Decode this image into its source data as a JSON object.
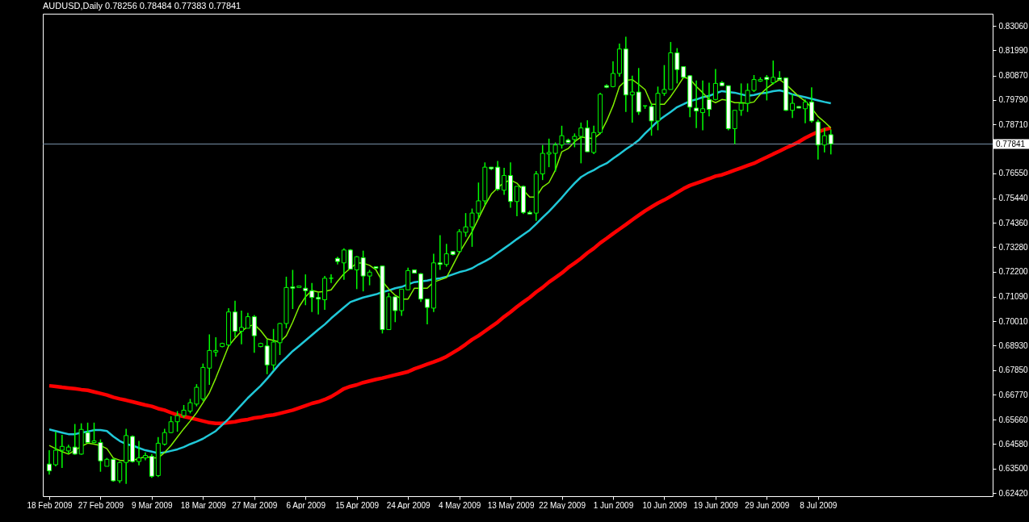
{
  "chart_data": {
    "type": "candlestick",
    "title": "AUDUSD,Daily  0.78256 0.78484 0.77383 0.77841",
    "categories": [
      "18 Feb 2009",
      null,
      null,
      null,
      null,
      null,
      null,
      null,
      "27 Feb 2009",
      null,
      null,
      null,
      null,
      null,
      null,
      null,
      "9 Mar 2009",
      null,
      null,
      null,
      null,
      null,
      null,
      null,
      "18 Mar 2009",
      null,
      null,
      null,
      null,
      null,
      null,
      null,
      "27 Mar 2009",
      null,
      null,
      null,
      null,
      null,
      null,
      null,
      "6 Apr 2009",
      null,
      null,
      null,
      null,
      null,
      null,
      null,
      "15 Apr 2009",
      null,
      null,
      null,
      null,
      null,
      null,
      null,
      "24 Apr 2009",
      null,
      null,
      null,
      null,
      null,
      null,
      null,
      "4 May 2009",
      null,
      null,
      null,
      null,
      null,
      null,
      null,
      "13 May 2009",
      null,
      null,
      null,
      null,
      null,
      null,
      null,
      "22 May 2009",
      null,
      null,
      null,
      null,
      null,
      null,
      null,
      "1 Jun 2009",
      null,
      null,
      null,
      null,
      null,
      null,
      null,
      "10 Jun 2009",
      null,
      null,
      null,
      null,
      null,
      null,
      null,
      "19 Jun 2009",
      null,
      null,
      null,
      null,
      null,
      null,
      null,
      "29 Jun 2009",
      null,
      null,
      null,
      null,
      null,
      null,
      null,
      "8 Jul 2009",
      null,
      null
    ],
    "color": "#00ff00",
    "colors": [
      "#ffffff",
      "#000000",
      "#000000",
      "#000000",
      "#ffffff",
      "#000000",
      "#ffffff",
      "#000000",
      "#ffffff",
      "#000000",
      "#ffffff",
      "#000000",
      "#000000",
      "#ffffff",
      "#000000",
      "#000000",
      "#ffffff",
      "#000000",
      "#000000",
      "#000000",
      "#000000",
      "#000000",
      "#000000",
      "#000000",
      "#000000",
      "#000000",
      "#000000",
      "#000000",
      "#000000",
      "#ffffff",
      "#000000",
      "#000000",
      "#ffffff",
      "#000000",
      "#ffffff",
      "#000000",
      "#000000",
      "#000000",
      "#ffffff",
      "#000000",
      "#ffffff",
      "#ffffff",
      "#ffffff",
      "#000000",
      "#00ff00",
      "#ffffff",
      "#000000",
      "#ffffff",
      "#000000",
      "#ffffff",
      "#000000",
      "#ffffff",
      "#ffffff",
      "#000000",
      "#ffffff",
      "#000000",
      "#000000",
      "#ffffff",
      "#ffffff",
      "#ffffff",
      "#000000",
      "#ffffff",
      "#000000",
      "#ffffff",
      "#000000",
      "#000000",
      "#000000",
      "#000000",
      "#000000",
      "#ffffff",
      "#ffffff",
      "#000000",
      "#ffffff",
      "#000000",
      "#ffffff",
      "#ffffff",
      "#000000",
      "#000000",
      "#000000",
      "#000000",
      "#000000",
      "#ffffff",
      "#000000",
      "#000000",
      "#ffffff",
      "#000000",
      "#000000",
      "#ffffff",
      "#000000",
      "#000000",
      "#ffffff",
      "#000000",
      "#ffffff",
      "#00ff00",
      "#ffffff",
      "#000000",
      "#000000",
      "#000000",
      "#ffffff",
      "#ffffff",
      "#ffffff",
      "#ffffff",
      "#000000",
      "#ffffff",
      "#000000",
      "#ffffff",
      "#ffffff",
      "#000000",
      "#000000",
      "#000000",
      "#000000",
      "#000000",
      "#ffffff",
      "#000000",
      "#ffffff",
      "#ffffff",
      "#000000",
      "#ffffff",
      "#000000",
      "#ffffff",
      "#ffffff",
      "#000000",
      "#ffffff"
    ],
    "ohlc": [
      [
        0.637,
        0.6431,
        0.6323,
        0.634
      ],
      [
        0.6367,
        0.6513,
        0.636,
        0.6431
      ],
      [
        0.6431,
        0.6499,
        0.6353,
        0.6448
      ],
      [
        0.6428,
        0.6455,
        0.6414,
        0.6445
      ],
      [
        0.6445,
        0.6547,
        0.6411,
        0.6414
      ],
      [
        0.6414,
        0.655,
        0.6411,
        0.6523
      ],
      [
        0.6509,
        0.6553,
        0.6465,
        0.6465
      ],
      [
        0.6465,
        0.6553,
        0.6462,
        0.6472
      ],
      [
        0.6465,
        0.6479,
        0.6336,
        0.6384
      ],
      [
        0.636,
        0.6397,
        0.636,
        0.6391
      ],
      [
        0.6391,
        0.6394,
        0.6292,
        0.6296
      ],
      [
        0.6296,
        0.6381,
        0.6286,
        0.6377
      ],
      [
        0.6377,
        0.6526,
        0.6282,
        0.6496
      ],
      [
        0.6492,
        0.6496,
        0.6377,
        0.6381
      ],
      [
        0.6381,
        0.6472,
        0.6364,
        0.6397
      ],
      [
        0.6397,
        0.6421,
        0.6387,
        0.6408
      ],
      [
        0.6404,
        0.6414,
        0.6309,
        0.6316
      ],
      [
        0.6319,
        0.6489,
        0.6313,
        0.6462
      ],
      [
        0.6458,
        0.6526,
        0.6452,
        0.6509
      ],
      [
        0.6509,
        0.6581,
        0.6506,
        0.6557
      ],
      [
        0.6557,
        0.6604,
        0.6513,
        0.6584
      ],
      [
        0.6584,
        0.6631,
        0.6574,
        0.6608
      ],
      [
        0.6604,
        0.6658,
        0.6594,
        0.6641
      ],
      [
        0.6635,
        0.6723,
        0.6625,
        0.6709
      ],
      [
        0.6658,
        0.6814,
        0.6648,
        0.6797
      ],
      [
        0.6794,
        0.6943,
        0.672,
        0.6872
      ],
      [
        0.6865,
        0.693,
        0.6845,
        0.6872
      ],
      [
        0.6889,
        0.6906,
        0.6886,
        0.6903
      ],
      [
        0.6896,
        0.7059,
        0.6892,
        0.7042
      ],
      [
        0.7042,
        0.7092,
        0.693,
        0.6957
      ],
      [
        0.6957,
        0.7048,
        0.6899,
        0.6974
      ],
      [
        0.697,
        0.7038,
        0.697,
        0.7021
      ],
      [
        0.7021,
        0.7028,
        0.6862,
        0.6937
      ],
      [
        0.6889,
        0.6906,
        0.6886,
        0.6903
      ],
      [
        0.6892,
        0.692,
        0.6767,
        0.6808
      ],
      [
        0.6808,
        0.6967,
        0.6784,
        0.6909
      ],
      [
        0.6906,
        0.6994,
        0.6852,
        0.6991
      ],
      [
        0.6991,
        0.7198,
        0.697,
        0.715
      ],
      [
        0.7153,
        0.7228,
        0.7055,
        0.7147
      ],
      [
        0.715,
        0.7157,
        0.715,
        0.7157
      ],
      [
        0.7147,
        0.7208,
        0.7072,
        0.7136
      ],
      [
        0.7136,
        0.717,
        0.7042,
        0.7106
      ],
      [
        0.7106,
        0.7126,
        0.7031,
        0.7099
      ],
      [
        0.7096,
        0.7201,
        0.7052,
        0.7191
      ],
      [
        0.7191,
        0.7208,
        0.717,
        0.7191
      ],
      [
        0.7279,
        0.7286,
        0.7252,
        0.7265
      ],
      [
        0.7259,
        0.7323,
        0.7184,
        0.7316
      ],
      [
        0.7316,
        0.732,
        0.7231,
        0.7231
      ],
      [
        0.7228,
        0.7289,
        0.7143,
        0.7286
      ],
      [
        0.7282,
        0.7313,
        0.7133,
        0.7201
      ],
      [
        0.7201,
        0.7228,
        0.716,
        0.7218
      ],
      [
        0.7242,
        0.7242,
        0.7231,
        0.7235
      ],
      [
        0.7245,
        0.7245,
        0.6947,
        0.6964
      ],
      [
        0.6964,
        0.7126,
        0.6964,
        0.7109
      ],
      [
        0.7109,
        0.7109,
        0.6997,
        0.7048
      ],
      [
        0.7048,
        0.7143,
        0.7025,
        0.7143
      ],
      [
        0.714,
        0.7238,
        0.714,
        0.7225
      ],
      [
        0.7228,
        0.7228,
        0.7214,
        0.7214
      ],
      [
        0.7211,
        0.7214,
        0.7086,
        0.7099
      ],
      [
        0.7099,
        0.7099,
        0.6987,
        0.7062
      ],
      [
        0.7059,
        0.7299,
        0.7042,
        0.7259
      ],
      [
        0.7259,
        0.7381,
        0.7228,
        0.7252
      ],
      [
        0.7252,
        0.7343,
        0.7242,
        0.7299
      ],
      [
        0.7309,
        0.7309,
        0.7292,
        0.7296
      ],
      [
        0.7309,
        0.7408,
        0.7303,
        0.7397
      ],
      [
        0.7394,
        0.7479,
        0.7374,
        0.7418
      ],
      [
        0.7418,
        0.7499,
        0.733,
        0.7479
      ],
      [
        0.7479,
        0.7614,
        0.7452,
        0.7533
      ],
      [
        0.7533,
        0.7703,
        0.7513,
        0.7682
      ],
      [
        0.7682,
        0.7682,
        0.7669,
        0.7675
      ],
      [
        0.7682,
        0.7709,
        0.7577,
        0.7584
      ],
      [
        0.758,
        0.7679,
        0.756,
        0.7645
      ],
      [
        0.7645,
        0.7703,
        0.7503,
        0.753
      ],
      [
        0.753,
        0.7597,
        0.7465,
        0.7597
      ],
      [
        0.7597,
        0.7601,
        0.7475,
        0.7482
      ],
      [
        0.7482,
        0.7489,
        0.7475,
        0.7475
      ],
      [
        0.7479,
        0.7665,
        0.7445,
        0.7652
      ],
      [
        0.7652,
        0.778,
        0.7625,
        0.7743
      ],
      [
        0.774,
        0.7808,
        0.7682,
        0.7747
      ],
      [
        0.7743,
        0.7791,
        0.7662,
        0.778
      ],
      [
        0.778,
        0.7865,
        0.7764,
        0.7821
      ],
      [
        0.7801,
        0.7808,
        0.7787,
        0.7791
      ],
      [
        0.7804,
        0.7831,
        0.777,
        0.7818
      ],
      [
        0.7818,
        0.7879,
        0.7699,
        0.7855
      ],
      [
        0.7855,
        0.7889,
        0.775,
        0.775
      ],
      [
        0.7747,
        0.7865,
        0.774,
        0.7835
      ],
      [
        0.7835,
        0.8011,
        0.7828,
        0.8004
      ],
      [
        0.8042,
        0.8048,
        0.8031,
        0.8035
      ],
      [
        0.8038,
        0.815,
        0.8035,
        0.8096
      ],
      [
        0.8096,
        0.8228,
        0.8082,
        0.8204
      ],
      [
        0.8204,
        0.8258,
        0.7926,
        0.8001
      ],
      [
        0.8001,
        0.8086,
        0.7879,
        0.8014
      ],
      [
        0.8014,
        0.812,
        0.7913,
        0.7926
      ],
      [
        0.7953,
        0.7953,
        0.794,
        0.7953
      ],
      [
        0.795,
        0.7964,
        0.7821,
        0.7886
      ],
      [
        0.7886,
        0.8038,
        0.7845,
        0.8008
      ],
      [
        0.8008,
        0.8133,
        0.7997,
        0.8025
      ],
      [
        0.8025,
        0.8235,
        0.8025,
        0.8187
      ],
      [
        0.8187,
        0.8208,
        0.8052,
        0.8113
      ],
      [
        0.8126,
        0.8126,
        0.8076,
        0.8079
      ],
      [
        0.8086,
        0.8089,
        0.7903,
        0.7947
      ],
      [
        0.7943,
        0.8065,
        0.7855,
        0.793
      ],
      [
        0.7923,
        0.8065,
        0.7845,
        0.794
      ],
      [
        0.7981,
        0.8055,
        0.7906,
        0.7937
      ],
      [
        0.7981,
        0.8116,
        0.7977,
        0.8052
      ],
      [
        0.8055,
        0.8062,
        0.8042,
        0.8042
      ],
      [
        0.8042,
        0.8042,
        0.7845,
        0.7852
      ],
      [
        0.7852,
        0.7933,
        0.7784,
        0.7933
      ],
      [
        0.7933,
        0.8052,
        0.7909,
        0.7964
      ],
      [
        0.7964,
        0.8052,
        0.7926,
        0.8021
      ],
      [
        0.8021,
        0.8089,
        0.8014,
        0.8069
      ],
      [
        0.8062,
        0.8079,
        0.8059,
        0.8069
      ],
      [
        0.8079,
        0.8089,
        0.7977,
        0.8069
      ],
      [
        0.8055,
        0.8153,
        0.8048,
        0.8079
      ],
      [
        0.8076,
        0.8106,
        0.8065,
        0.8069
      ],
      [
        0.8076,
        0.8076,
        0.793,
        0.7933
      ],
      [
        0.7933,
        0.8004,
        0.7899,
        0.7964
      ],
      [
        0.795,
        0.795,
        0.7943,
        0.7943
      ],
      [
        0.794,
        0.7981,
        0.7876,
        0.797
      ],
      [
        0.797,
        0.8035,
        0.7879,
        0.7886
      ],
      [
        0.7882,
        0.7892,
        0.7716,
        0.778
      ],
      [
        0.778,
        0.7855,
        0.7747,
        0.7821
      ],
      [
        0.78256,
        0.78484,
        0.77383,
        0.77841
      ]
    ],
    "series": [
      {
        "type": "line",
        "color": "#ff0000",
        "values": [
          0.6716,
          0.6713,
          0.6709,
          0.6706,
          0.6703,
          0.6699,
          0.6696,
          0.6689,
          0.6682,
          0.6675,
          0.6665,
          0.6658,
          0.6652,
          0.6645,
          0.6638,
          0.6631,
          0.6625,
          0.6615,
          0.6608,
          0.6597,
          0.6587,
          0.658,
          0.6574,
          0.6567,
          0.656,
          0.6553,
          0.655,
          0.655,
          0.6553,
          0.6557,
          0.6563,
          0.6567,
          0.6574,
          0.6577,
          0.6584,
          0.6587,
          0.6594,
          0.6601,
          0.6608,
          0.6618,
          0.6628,
          0.6638,
          0.6645,
          0.6655,
          0.6668,
          0.6685,
          0.6703,
          0.6713,
          0.672,
          0.673,
          0.6737,
          0.6744,
          0.675,
          0.6757,
          0.6764,
          0.6771,
          0.6778,
          0.6791,
          0.6801,
          0.6811,
          0.6821,
          0.6832,
          0.6845,
          0.6862,
          0.6879,
          0.6899,
          0.692,
          0.6937,
          0.6957,
          0.6977,
          0.6997,
          0.7021,
          0.7042,
          0.7065,
          0.7086,
          0.7106,
          0.713,
          0.715,
          0.7174,
          0.7194,
          0.7214,
          0.7238,
          0.7258,
          0.7279,
          0.7303,
          0.7323,
          0.7347,
          0.7367,
          0.7388,
          0.7408,
          0.7428,
          0.7449,
          0.7469,
          0.7489,
          0.7506,
          0.7523,
          0.7537,
          0.7553,
          0.757,
          0.7587,
          0.7601,
          0.7611,
          0.7621,
          0.7631,
          0.7642,
          0.7648,
          0.7658,
          0.7669,
          0.7679,
          0.7689,
          0.7699,
          0.7713,
          0.7726,
          0.774,
          0.7753,
          0.7767,
          0.778,
          0.7794,
          0.7811,
          0.7825,
          0.7838,
          0.7848,
          0.7855
        ]
      },
      {
        "type": "line",
        "color": "#20c8d8",
        "values": [
          0.6523,
          0.6516,
          0.6509,
          0.6502,
          0.6502,
          0.6509,
          0.6513,
          0.652,
          0.652,
          0.6516,
          0.6492,
          0.6472,
          0.6458,
          0.6452,
          0.6441,
          0.6431,
          0.6425,
          0.6418,
          0.6421,
          0.6428,
          0.6435,
          0.6445,
          0.6458,
          0.6469,
          0.6482,
          0.6499,
          0.6516,
          0.6543,
          0.657,
          0.6601,
          0.6631,
          0.6662,
          0.6689,
          0.6716,
          0.6747,
          0.6781,
          0.6814,
          0.6841,
          0.6869,
          0.6892,
          0.6916,
          0.694,
          0.6964,
          0.6987,
          0.7014,
          0.7038,
          0.7062,
          0.7086,
          0.7096,
          0.7106,
          0.7113,
          0.712,
          0.713,
          0.7137,
          0.7147,
          0.7153,
          0.7164,
          0.7174,
          0.7177,
          0.7181,
          0.7187,
          0.7191,
          0.7198,
          0.7208,
          0.7218,
          0.7225,
          0.7235,
          0.7252,
          0.7266,
          0.7282,
          0.7303,
          0.7323,
          0.7343,
          0.7364,
          0.7384,
          0.7404,
          0.7431,
          0.7459,
          0.7486,
          0.7516,
          0.7547,
          0.758,
          0.7611,
          0.7638,
          0.7655,
          0.7669,
          0.7686,
          0.7699,
          0.772,
          0.774,
          0.7761,
          0.778,
          0.7801,
          0.7831,
          0.7858,
          0.7886,
          0.7906,
          0.7926,
          0.7947,
          0.796,
          0.7974,
          0.7981,
          0.7991,
          0.7997,
          0.8008,
          0.8018,
          0.8014,
          0.8011,
          0.8004,
          0.7997,
          0.8001,
          0.8008,
          0.8011,
          0.8018,
          0.8021,
          0.8014,
          0.8004,
          0.7997,
          0.7991,
          0.7984,
          0.7977,
          0.797,
          0.7964
        ]
      },
      {
        "type": "line",
        "color": "#80f000",
        "values": [
          0.6452,
          0.6438,
          0.6425,
          0.6414,
          0.6431,
          0.6448,
          0.6462,
          0.6458,
          0.6452,
          0.6438,
          0.6397,
          0.6387,
          0.6384,
          0.6387,
          0.6394,
          0.6404,
          0.6397,
          0.6397,
          0.6421,
          0.6452,
          0.6489,
          0.6526,
          0.656,
          0.6597,
          0.6641,
          0.6685,
          0.675,
          0.6821,
          0.6892,
          0.6926,
          0.6957,
          0.6977,
          0.6987,
          0.696,
          0.6923,
          0.6916,
          0.6909,
          0.6937,
          0.6997,
          0.7065,
          0.7109,
          0.7137,
          0.713,
          0.7133,
          0.714,
          0.7177,
          0.7211,
          0.7235,
          0.7258,
          0.7258,
          0.7248,
          0.7228,
          0.7177,
          0.7143,
          0.7116,
          0.7099,
          0.7099,
          0.7147,
          0.7147,
          0.7147,
          0.7174,
          0.7184,
          0.7194,
          0.7248,
          0.7303,
          0.735,
          0.7397,
          0.7455,
          0.7513,
          0.7563,
          0.7591,
          0.7614,
          0.7625,
          0.7611,
          0.758,
          0.755,
          0.755,
          0.7594,
          0.7614,
          0.7669,
          0.775,
          0.7764,
          0.7794,
          0.7815,
          0.7811,
          0.7808,
          0.7831,
          0.7886,
          0.7953,
          0.8038,
          0.8065,
          0.8069,
          0.8048,
          0.8025,
          0.796,
          0.796,
          0.796,
          0.7994,
          0.8035,
          0.8079,
          0.8072,
          0.8038,
          0.8011,
          0.7981,
          0.7967,
          0.7981,
          0.7977,
          0.7967,
          0.7967,
          0.7964,
          0.797,
          0.8004,
          0.8031,
          0.8052,
          0.8069,
          0.8048,
          0.8021,
          0.7994,
          0.7974,
          0.7943,
          0.7906,
          0.7882,
          0.7855
        ]
      }
    ],
    "ylim": [
      0.6228,
      0.836
    ],
    "yticks": [
      {
        "value": 0.8306,
        "label": "0.83060"
      },
      {
        "value": 0.8199,
        "label": "0.81990"
      },
      {
        "value": 0.8087,
        "label": "0.80870"
      },
      {
        "value": 0.7979,
        "label": "0.79790"
      },
      {
        "value": 0.7871,
        "label": "0.78710"
      },
      {
        "value": 0.7655,
        "label": "0.76550"
      },
      {
        "value": 0.7544,
        "label": "0.75440"
      },
      {
        "value": 0.7436,
        "label": "0.74360"
      },
      {
        "value": 0.7328,
        "label": "0.73280"
      },
      {
        "value": 0.722,
        "label": "0.72200"
      },
      {
        "value": 0.7109,
        "label": "0.71090"
      },
      {
        "value": 0.7001,
        "label": "0.70010"
      },
      {
        "value": 0.6893,
        "label": "0.68930"
      },
      {
        "value": 0.6785,
        "label": "0.67850"
      },
      {
        "value": 0.6677,
        "label": "0.66770"
      },
      {
        "value": 0.6566,
        "label": "0.65660"
      },
      {
        "value": 0.6458,
        "label": "0.64580"
      },
      {
        "value": 0.635,
        "label": "0.63500"
      },
      {
        "value": 0.6242,
        "label": "0.62420"
      }
    ],
    "ref_lines": [
      {
        "axis": "y",
        "value": 0.77841,
        "label": "0.77841",
        "color": "#7890a8"
      }
    ]
  }
}
